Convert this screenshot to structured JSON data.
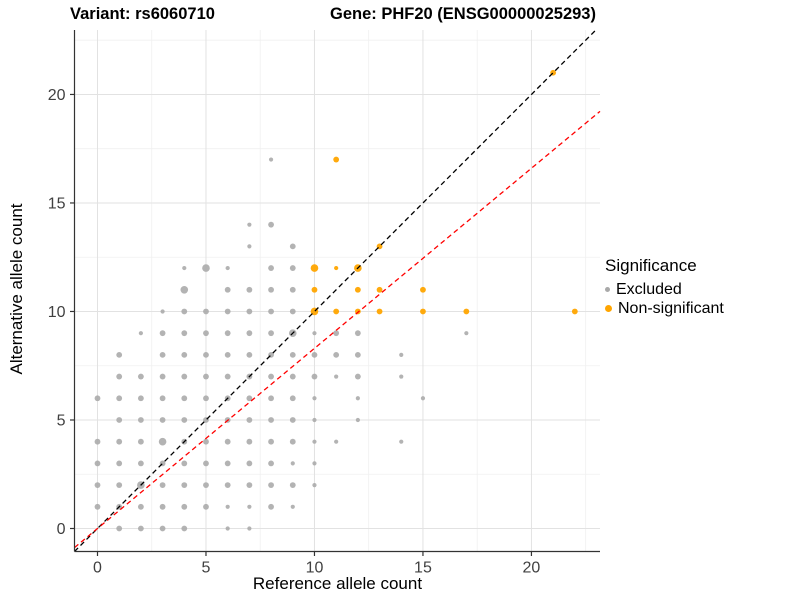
{
  "figure": {
    "variant_title": "Variant: rs6060710",
    "gene_title": "Gene: PHF20 (ENSG00000025293)"
  },
  "legend": {
    "title": "Significance",
    "items": [
      {
        "label": "Excluded",
        "color": "#A9A9A9",
        "dot_diameter": 5
      },
      {
        "label": "Non-significant",
        "color": "#FFA500",
        "dot_diameter": 7
      }
    ]
  },
  "chart_data": {
    "type": "scatter",
    "x_axis": {
      "label": "Reference allele count",
      "ticks": [
        0,
        5,
        10,
        15,
        20
      ],
      "minor_gridlines": [
        2.5,
        7.5,
        12.5,
        17.5,
        22.5
      ],
      "range": [
        -1.06,
        23.16
      ]
    },
    "y_axis": {
      "label": "Alternative allele count",
      "ticks": [
        0,
        5,
        10,
        15,
        20
      ],
      "minor_gridlines": [
        2.5,
        7.5,
        12.5,
        17.5,
        22.5
      ],
      "range": [
        -1.06,
        22.97
      ]
    },
    "reference_lines": [
      {
        "name": "identity-line",
        "slope": 1,
        "intercept": 0,
        "color": "#000000",
        "style": "dashed"
      },
      {
        "name": "expected-ratio-line",
        "slope": 0.83,
        "intercept": 0,
        "color": "#FF0000",
        "style": "dashed"
      }
    ],
    "point_size_classes": {
      "1": 2.1,
      "2": 2.9,
      "3": 3.8
    },
    "series": [
      {
        "name": "Excluded",
        "color": "#A9A9A9",
        "opacity": 0.88,
        "points": [
          [
            1,
            0,
            2
          ],
          [
            2,
            0,
            2
          ],
          [
            3,
            0,
            2
          ],
          [
            4,
            0,
            2
          ],
          [
            6,
            0,
            1
          ],
          [
            7,
            0,
            1
          ],
          [
            0,
            1,
            2
          ],
          [
            1,
            1,
            2
          ],
          [
            2,
            1,
            2
          ],
          [
            3,
            1,
            2
          ],
          [
            4,
            1,
            2
          ],
          [
            5,
            1,
            2
          ],
          [
            6,
            1,
            1
          ],
          [
            7,
            1,
            1
          ],
          [
            8,
            1,
            2
          ],
          [
            9,
            1,
            1
          ],
          [
            0,
            2,
            2
          ],
          [
            1,
            2,
            2
          ],
          [
            2,
            2,
            3
          ],
          [
            3,
            2,
            2
          ],
          [
            4,
            2,
            2
          ],
          [
            5,
            2,
            2
          ],
          [
            6,
            2,
            2
          ],
          [
            7,
            2,
            2
          ],
          [
            8,
            2,
            2
          ],
          [
            9,
            2,
            2
          ],
          [
            10,
            2,
            1
          ],
          [
            0,
            3,
            2
          ],
          [
            1,
            3,
            2
          ],
          [
            2,
            3,
            2
          ],
          [
            3,
            3,
            2
          ],
          [
            4,
            3,
            2
          ],
          [
            5,
            3,
            2
          ],
          [
            6,
            3,
            2
          ],
          [
            7,
            3,
            2
          ],
          [
            8,
            3,
            2
          ],
          [
            9,
            3,
            1
          ],
          [
            10,
            3,
            1
          ],
          [
            0,
            4,
            2
          ],
          [
            1,
            4,
            2
          ],
          [
            2,
            4,
            2
          ],
          [
            3,
            4,
            3
          ],
          [
            4,
            4,
            2
          ],
          [
            5,
            4,
            2
          ],
          [
            6,
            4,
            2
          ],
          [
            7,
            4,
            2
          ],
          [
            8,
            4,
            2
          ],
          [
            9,
            4,
            2
          ],
          [
            10,
            4,
            1
          ],
          [
            11,
            4,
            1
          ],
          [
            14,
            4,
            1
          ],
          [
            1,
            5,
            2
          ],
          [
            2,
            5,
            2
          ],
          [
            3,
            5,
            2
          ],
          [
            4,
            5,
            2
          ],
          [
            5,
            5,
            2
          ],
          [
            6,
            5,
            2
          ],
          [
            7,
            5,
            2
          ],
          [
            8,
            5,
            2
          ],
          [
            9,
            5,
            2
          ],
          [
            10,
            5,
            1
          ],
          [
            12,
            5,
            1
          ],
          [
            0,
            6,
            2
          ],
          [
            1,
            6,
            2
          ],
          [
            2,
            6,
            2
          ],
          [
            3,
            6,
            2
          ],
          [
            4,
            6,
            2
          ],
          [
            5,
            6,
            2
          ],
          [
            6,
            6,
            2
          ],
          [
            7,
            6,
            2
          ],
          [
            8,
            6,
            2
          ],
          [
            9,
            6,
            2
          ],
          [
            10,
            6,
            1
          ],
          [
            12,
            6,
            1
          ],
          [
            15,
            6,
            1
          ],
          [
            1,
            7,
            2
          ],
          [
            2,
            7,
            2
          ],
          [
            3,
            7,
            2
          ],
          [
            4,
            7,
            2
          ],
          [
            5,
            7,
            2
          ],
          [
            6,
            7,
            2
          ],
          [
            7,
            7,
            2
          ],
          [
            8,
            7,
            2
          ],
          [
            9,
            7,
            2
          ],
          [
            10,
            7,
            2
          ],
          [
            11,
            7,
            1
          ],
          [
            12,
            7,
            2
          ],
          [
            14,
            7,
            1
          ],
          [
            1,
            8,
            2
          ],
          [
            3,
            8,
            2
          ],
          [
            4,
            8,
            2
          ],
          [
            5,
            8,
            2
          ],
          [
            6,
            8,
            2
          ],
          [
            7,
            8,
            2
          ],
          [
            8,
            8,
            2
          ],
          [
            9,
            8,
            2
          ],
          [
            10,
            8,
            2
          ],
          [
            11,
            8,
            2
          ],
          [
            12,
            8,
            2
          ],
          [
            14,
            8,
            1
          ],
          [
            2,
            9,
            1
          ],
          [
            3,
            9,
            2
          ],
          [
            4,
            9,
            2
          ],
          [
            5,
            9,
            2
          ],
          [
            6,
            9,
            2
          ],
          [
            7,
            9,
            2
          ],
          [
            8,
            9,
            2
          ],
          [
            9,
            9,
            3
          ],
          [
            10,
            9,
            1
          ],
          [
            11,
            9,
            2
          ],
          [
            12,
            9,
            2
          ],
          [
            17,
            9,
            1
          ],
          [
            3,
            10,
            1
          ],
          [
            4,
            10,
            2
          ],
          [
            5,
            10,
            2
          ],
          [
            6,
            10,
            2
          ],
          [
            7,
            10,
            2
          ],
          [
            8,
            10,
            2
          ],
          [
            9,
            10,
            2
          ],
          [
            4,
            11,
            3
          ],
          [
            6,
            11,
            2
          ],
          [
            7,
            11,
            2
          ],
          [
            8,
            11,
            2
          ],
          [
            9,
            11,
            2
          ],
          [
            4,
            12,
            1
          ],
          [
            5,
            12,
            3
          ],
          [
            6,
            12,
            1
          ],
          [
            8,
            12,
            2
          ],
          [
            9,
            12,
            2
          ],
          [
            7,
            13,
            1
          ],
          [
            9,
            13,
            2
          ],
          [
            7,
            14,
            1
          ],
          [
            8,
            14,
            2
          ],
          [
            8,
            17,
            1
          ]
        ]
      },
      {
        "name": "Non-significant",
        "color": "#FFA500",
        "opacity": 0.95,
        "points": [
          [
            10,
            10,
            3
          ],
          [
            11,
            10,
            2
          ],
          [
            12,
            10,
            2
          ],
          [
            13,
            10,
            2
          ],
          [
            15,
            10,
            2
          ],
          [
            17,
            10,
            2
          ],
          [
            22,
            10,
            2
          ],
          [
            10,
            11,
            2
          ],
          [
            12,
            11,
            2
          ],
          [
            13,
            11,
            2
          ],
          [
            15,
            11,
            2
          ],
          [
            10,
            12,
            3
          ],
          [
            11,
            12,
            1
          ],
          [
            12,
            12,
            3
          ],
          [
            13,
            13,
            2
          ],
          [
            11,
            17,
            2
          ],
          [
            21,
            21,
            2
          ]
        ]
      }
    ],
    "style": {
      "major_grid_color": "#E2E2E2",
      "minor_grid_color": "#F0F0F0",
      "axis_line_color": "#333333",
      "tick_label_color": "#404040"
    }
  }
}
